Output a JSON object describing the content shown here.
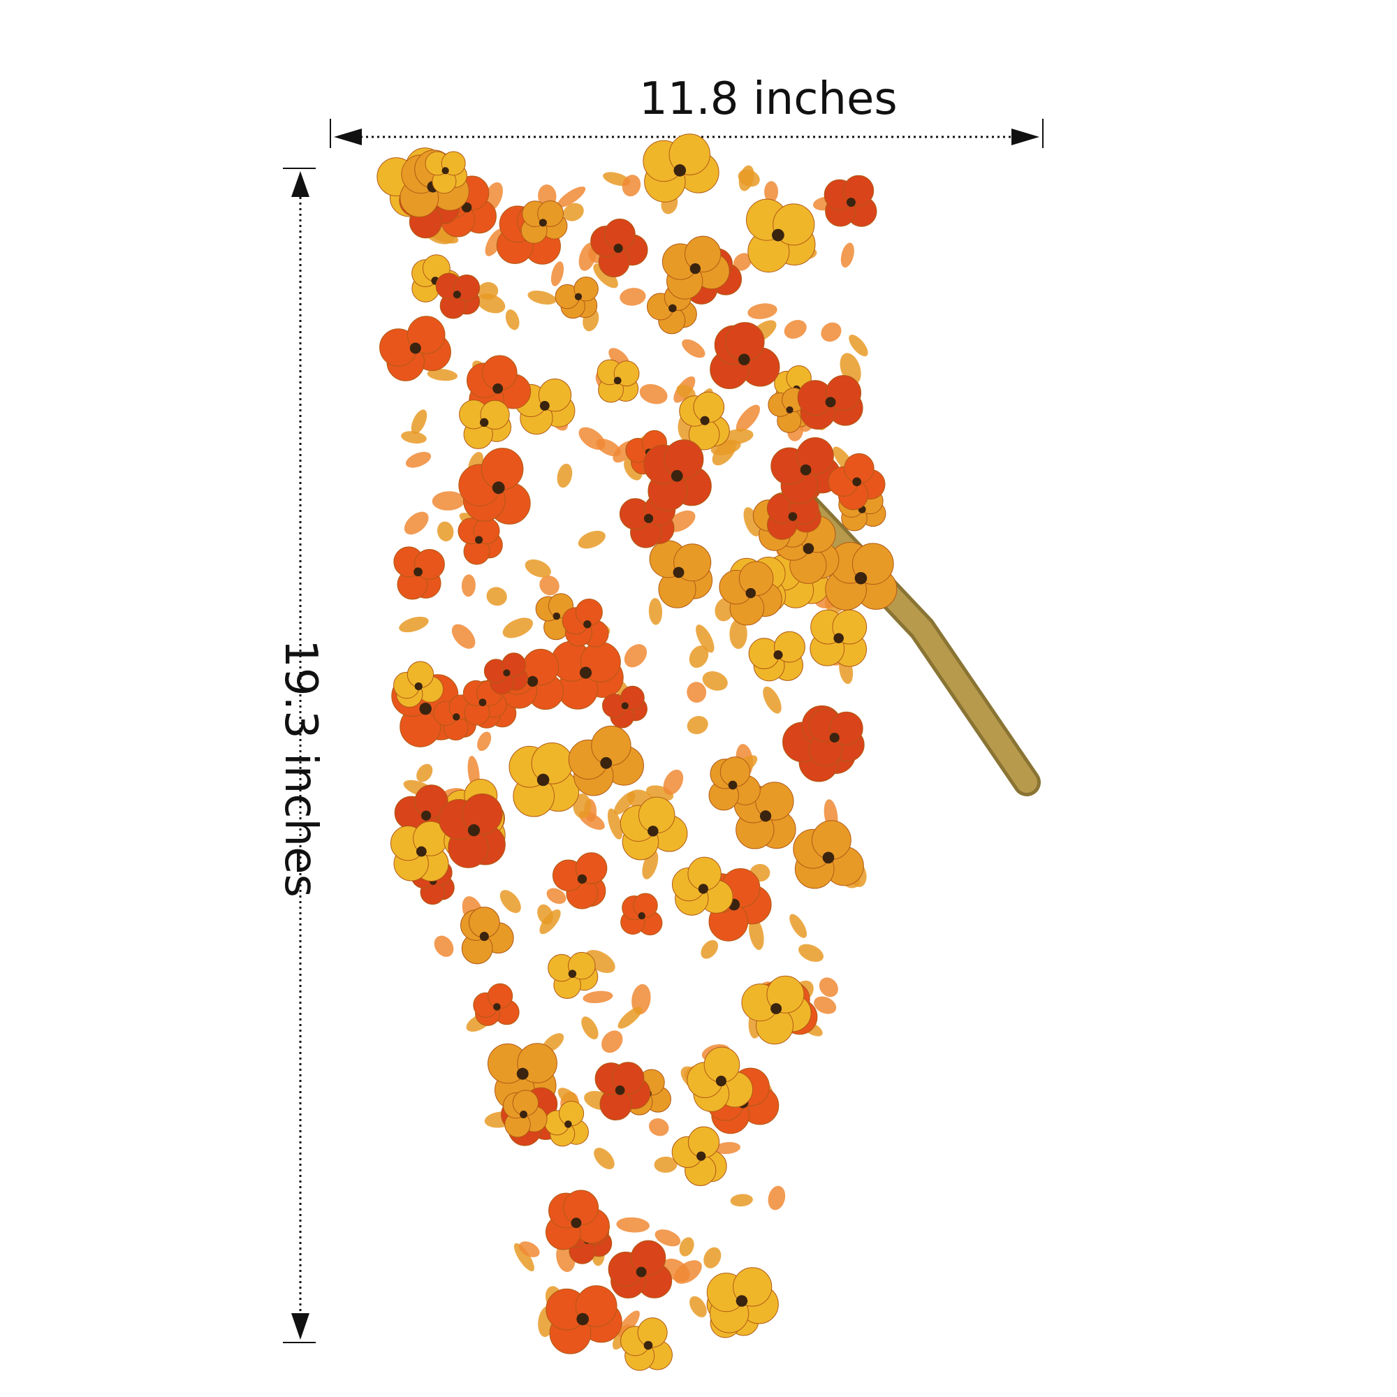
{
  "width_label": "11.8 inches",
  "height_label": "19.3 inches",
  "colors": {
    "orange": "#e8561c",
    "deep_orange": "#d9441a",
    "yellow": "#f0b62a",
    "golden": "#e89a26",
    "center": "#3a2410",
    "stem": "#b79a4c",
    "leaf": "#f08a35"
  },
  "icons": [
    "arrow-left-icon",
    "arrow-right-icon",
    "arrow-up-icon",
    "arrow-down-icon"
  ]
}
